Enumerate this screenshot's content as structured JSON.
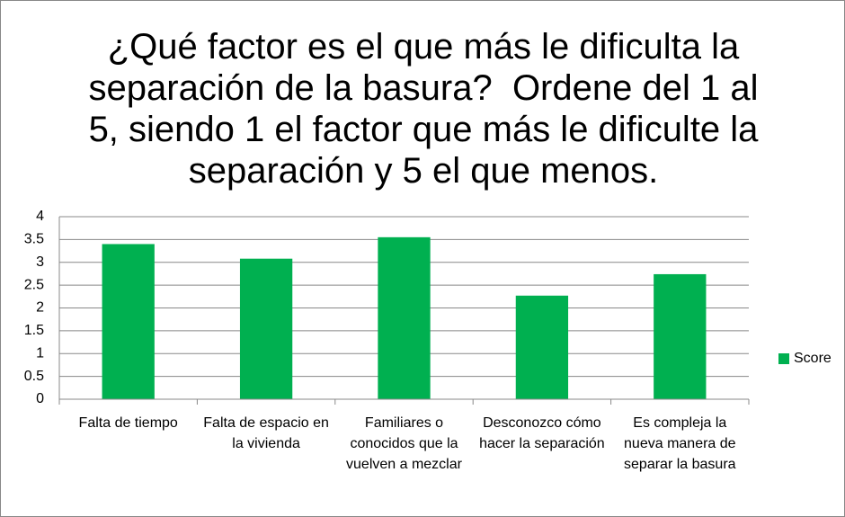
{
  "chart_data": {
    "type": "bar",
    "title": "¿Qué factor es el que más le dificulta la separación de la basura?  Ordene del 1 al 5, siendo 1 el factor que más le dificulte la separación y 5 el que menos.",
    "categories": [
      "Falta de tiempo",
      "Falta de espacio en la vivienda",
      "Familiares o conocidos que la vuelven a mezclar",
      "Desconozco cómo hacer la separación",
      "Es compleja la nueva manera de separar la basura"
    ],
    "series": [
      {
        "name": "Score",
        "color": "#00b050",
        "values": [
          3.4,
          3.08,
          3.55,
          2.27,
          2.74
        ]
      }
    ],
    "ylim": [
      0,
      4
    ],
    "yticks": [
      0,
      0.5,
      1,
      1.5,
      2,
      2.5,
      3,
      3.5,
      4
    ],
    "grid": true,
    "legend": "right"
  }
}
